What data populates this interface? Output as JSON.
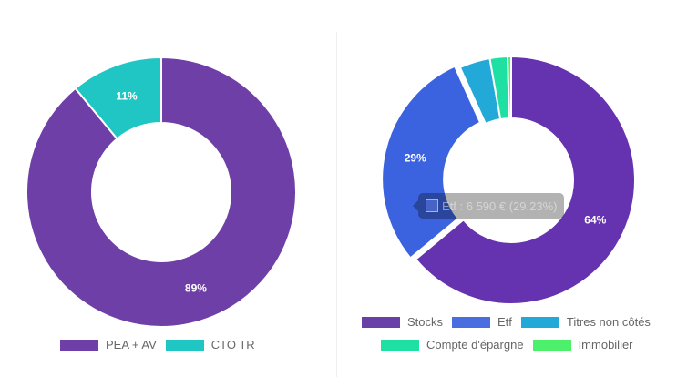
{
  "left_chart": {
    "type": "doughnut",
    "slices": [
      {
        "label": "PEA + AV",
        "percent": 89,
        "value_label": "89%",
        "color": "#6f3fa8"
      },
      {
        "label": "CTO TR",
        "percent": 11,
        "value_label": "11%",
        "color": "#1fc6c4"
      }
    ]
  },
  "right_chart": {
    "type": "doughnut",
    "slices": [
      {
        "label": "Stocks",
        "percent": 64,
        "value_label": "64%",
        "color": "#6533b0"
      },
      {
        "label": "Etf",
        "percent": 29.23,
        "value_label": "29%",
        "color": "#3b63e0"
      },
      {
        "label": "Titres non côtés",
        "percent": 4,
        "value_label": "",
        "color": "#22a9d8"
      },
      {
        "label": "Compte d'épargne",
        "percent": 2.3,
        "value_label": "",
        "color": "#1ee0a2"
      },
      {
        "label": "Immobilier",
        "percent": 0.47,
        "value_label": "",
        "color": "#4cf06a"
      }
    ],
    "tooltip": "Etf : 6 590 € (29.23%)"
  }
}
